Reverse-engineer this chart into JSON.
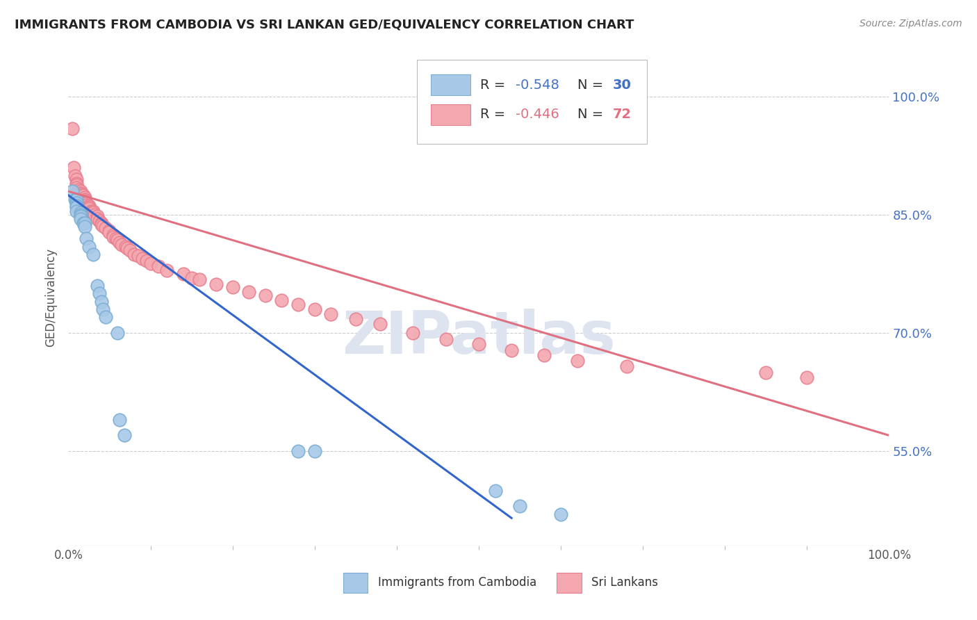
{
  "title": "IMMIGRANTS FROM CAMBODIA VS SRI LANKAN GED/EQUIVALENCY CORRELATION CHART",
  "source": "Source: ZipAtlas.com",
  "ylabel": "GED/Equivalency",
  "yticks_labels": [
    "100.0%",
    "85.0%",
    "70.0%",
    "55.0%"
  ],
  "ytick_vals": [
    1.0,
    0.85,
    0.7,
    0.55
  ],
  "xlim": [
    0.0,
    1.0
  ],
  "ylim": [
    0.43,
    1.06
  ],
  "watermark": "ZIPatlas",
  "cambodia_color": "#a8c8e8",
  "cambodia_edge_color": "#7bafd4",
  "srilanka_color": "#f4a8b0",
  "srilanka_edge_color": "#e88090",
  "cambodia_line_color": "#3366cc",
  "srilanka_line_color": "#e07080",
  "cambodia_scatter_x": [
    0.005,
    0.008,
    0.01,
    0.01,
    0.01,
    0.01,
    0.01,
    0.015,
    0.015,
    0.015,
    0.015,
    0.018,
    0.02,
    0.02,
    0.022,
    0.025,
    0.03,
    0.035,
    0.038,
    0.04,
    0.042,
    0.045,
    0.06,
    0.062,
    0.068,
    0.28,
    0.3,
    0.52,
    0.55,
    0.6
  ],
  "cambodia_scatter_y": [
    0.88,
    0.87,
    0.87,
    0.865,
    0.862,
    0.86,
    0.855,
    0.853,
    0.85,
    0.848,
    0.845,
    0.84,
    0.84,
    0.835,
    0.82,
    0.81,
    0.8,
    0.76,
    0.75,
    0.74,
    0.73,
    0.72,
    0.7,
    0.59,
    0.57,
    0.55,
    0.55,
    0.5,
    0.48,
    0.47
  ],
  "srilanka_scatter_x": [
    0.005,
    0.006,
    0.008,
    0.01,
    0.01,
    0.01,
    0.01,
    0.012,
    0.015,
    0.015,
    0.016,
    0.018,
    0.02,
    0.02,
    0.02,
    0.02,
    0.022,
    0.022,
    0.025,
    0.025,
    0.025,
    0.028,
    0.03,
    0.03,
    0.032,
    0.035,
    0.035,
    0.038,
    0.04,
    0.04,
    0.042,
    0.045,
    0.05,
    0.05,
    0.055,
    0.055,
    0.058,
    0.06,
    0.062,
    0.065,
    0.07,
    0.072,
    0.075,
    0.08,
    0.085,
    0.09,
    0.095,
    0.1,
    0.11,
    0.12,
    0.14,
    0.15,
    0.16,
    0.18,
    0.2,
    0.22,
    0.24,
    0.26,
    0.28,
    0.3,
    0.32,
    0.35,
    0.38,
    0.42,
    0.46,
    0.5,
    0.54,
    0.58,
    0.62,
    0.68,
    0.85,
    0.9
  ],
  "srilanka_scatter_y": [
    0.96,
    0.91,
    0.9,
    0.895,
    0.89,
    0.888,
    0.885,
    0.882,
    0.88,
    0.878,
    0.876,
    0.875,
    0.872,
    0.87,
    0.868,
    0.866,
    0.865,
    0.863,
    0.862,
    0.86,
    0.858,
    0.855,
    0.855,
    0.853,
    0.85,
    0.848,
    0.845,
    0.842,
    0.84,
    0.838,
    0.836,
    0.833,
    0.83,
    0.828,
    0.825,
    0.822,
    0.82,
    0.818,
    0.815,
    0.812,
    0.81,
    0.808,
    0.805,
    0.8,
    0.798,
    0.795,
    0.792,
    0.788,
    0.785,
    0.78,
    0.775,
    0.77,
    0.768,
    0.762,
    0.758,
    0.752,
    0.748,
    0.742,
    0.736,
    0.73,
    0.724,
    0.718,
    0.712,
    0.7,
    0.692,
    0.686,
    0.678,
    0.672,
    0.665,
    0.658,
    0.65,
    0.644
  ],
  "cambodia_line_x": [
    0.0,
    0.54
  ],
  "cambodia_line_y": [
    0.875,
    0.465
  ],
  "srilanka_line_x": [
    0.0,
    1.0
  ],
  "srilanka_line_y": [
    0.88,
    0.57
  ],
  "background_color": "#ffffff",
  "grid_color": "#cccccc",
  "tick_color": "#555555",
  "right_ytick_color": "#4472c4"
}
